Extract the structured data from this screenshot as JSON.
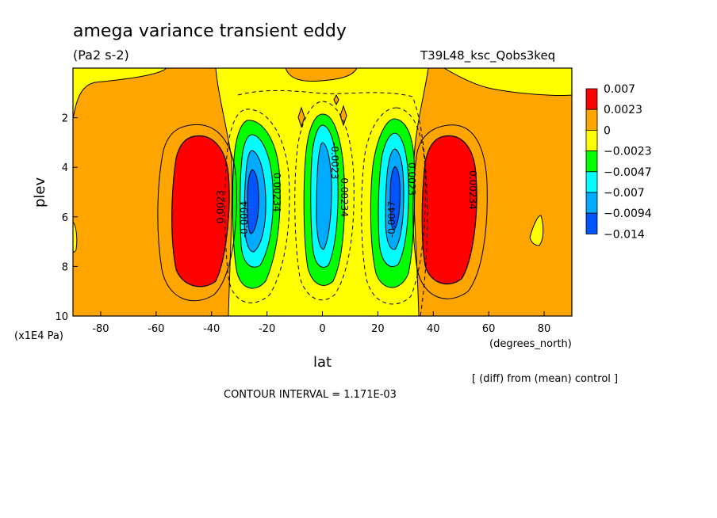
{
  "chart_data": {
    "type": "heatmap",
    "title": "amega variance transient eddy",
    "units": "(Pa2 s-2)",
    "run_id": "T39L48_ksc_Qobs3keq",
    "xlabel": "lat",
    "x_units": "(degrees_north)",
    "ylabel": "plev",
    "y_units": "(x1E4 Pa)",
    "xlim": [
      -90,
      90
    ],
    "ylim": [
      10,
      0
    ],
    "x_ticks": [
      "-80",
      "-60",
      "-40",
      "-20",
      "0",
      "20",
      "40",
      "60",
      "80"
    ],
    "y_ticks": [
      "2",
      "4",
      "6",
      "8",
      "10"
    ],
    "contour_interval": "CONTOUR INTERVAL = 1.171E-03",
    "note": "[ (diff) from (mean) control ]",
    "legend": {
      "levels": [
        "0.007",
        "0.0023",
        "0",
        "−0.0023",
        "−0.0047",
        "−0.007",
        "−0.0094",
        "−0.014"
      ],
      "colors": [
        "#ff0000",
        "#ffa500",
        "#ffff00",
        "#00ff00",
        "#00ffff",
        "#00aaff",
        "#0055ff"
      ]
    },
    "contour_labels": [
      "0.0023",
      "0.00234",
      "-0.0023",
      "-0.00234",
      "-0.0094",
      "-0.0047",
      "0.0023",
      "0.00234"
    ],
    "features": [
      {
        "name": "positive max SH",
        "lat": -45,
        "plev": 5.8,
        "value": 0.007
      },
      {
        "name": "negative min SH",
        "lat": -26,
        "plev": 5.5,
        "value": -0.0094
      },
      {
        "name": "negative min EQ",
        "lat": 0,
        "plev": 5.0,
        "value": -0.007
      },
      {
        "name": "negative min NH",
        "lat": 26,
        "plev": 5.0,
        "value": -0.0094
      },
      {
        "name": "positive max NH",
        "lat": 45,
        "plev": 5.8,
        "value": 0.007
      }
    ]
  }
}
